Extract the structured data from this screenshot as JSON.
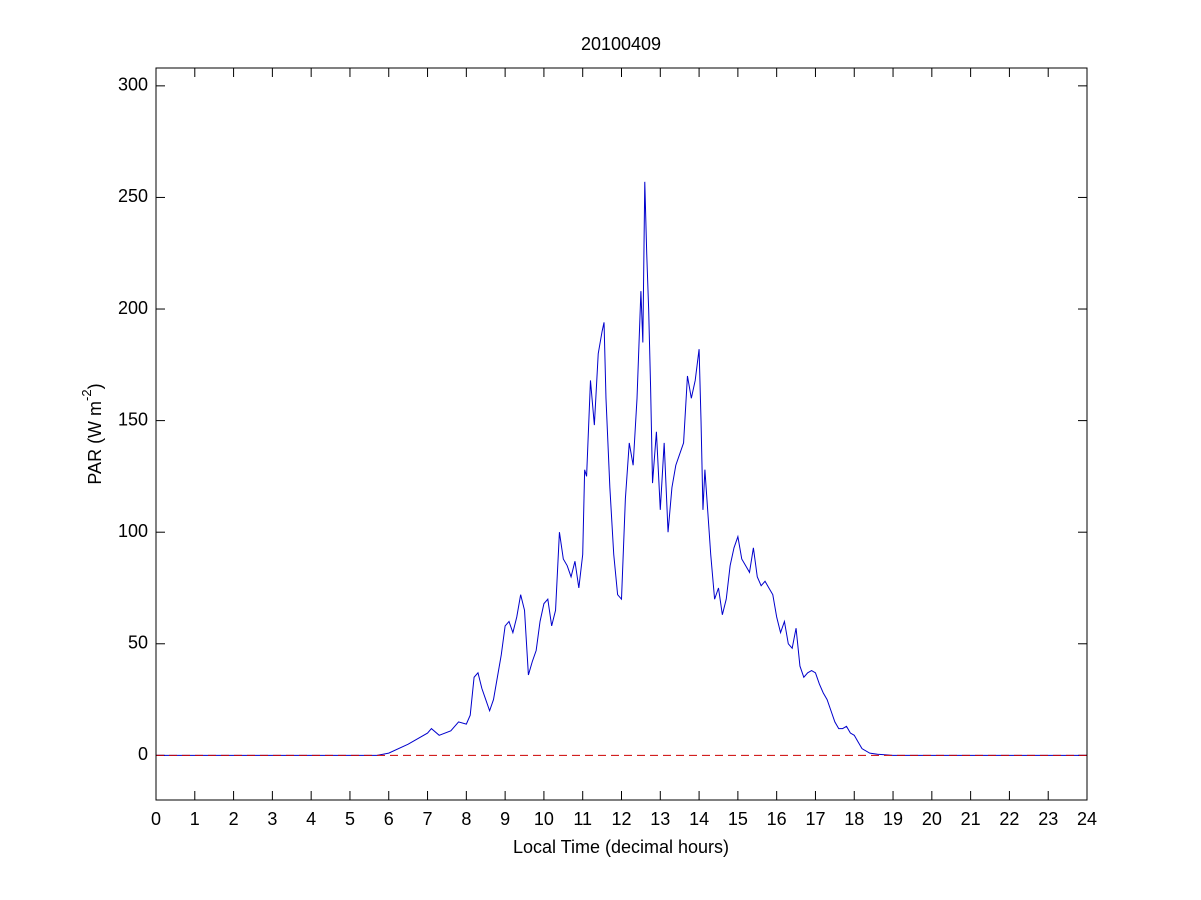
{
  "chart_data": {
    "type": "line",
    "title": "20100409",
    "xlabel": "Local Time (decimal hours)",
    "ylabel": {
      "text": "PAR (W m",
      "superscript": "-2",
      "suffix": ")"
    },
    "xlim": [
      0,
      24
    ],
    "ylim": [
      -20,
      308
    ],
    "xticks": [
      0,
      1,
      2,
      3,
      4,
      5,
      6,
      7,
      8,
      9,
      10,
      11,
      12,
      13,
      14,
      15,
      16,
      17,
      18,
      19,
      20,
      21,
      22,
      23,
      24
    ],
    "yticks": [
      0,
      50,
      100,
      150,
      200,
      250,
      300
    ],
    "grid": false,
    "reference_line": {
      "value": 0,
      "color": "#cc0000",
      "style": "dashed"
    },
    "series": [
      {
        "color": "#0000cc",
        "x": [
          0,
          5.7,
          6,
          6.5,
          7,
          7.1,
          7.3,
          7.6,
          7.8,
          8,
          8.1,
          8.2,
          8.3,
          8.4,
          8.5,
          8.6,
          8.7,
          8.8,
          8.9,
          9,
          9.1,
          9.2,
          9.3,
          9.4,
          9.5,
          9.6,
          9.7,
          9.8,
          9.9,
          10,
          10.1,
          10.2,
          10.3,
          10.4,
          10.5,
          10.6,
          10.7,
          10.8,
          10.9,
          11,
          11.05,
          11.1,
          11.2,
          11.3,
          11.4,
          11.5,
          11.55,
          11.6,
          11.7,
          11.8,
          11.9,
          12,
          12.1,
          12.2,
          12.3,
          12.4,
          12.5,
          12.55,
          12.6,
          12.65,
          12.7,
          12.75,
          12.8,
          12.9,
          13,
          13.1,
          13.2,
          13.3,
          13.4,
          13.5,
          13.6,
          13.7,
          13.8,
          13.9,
          14,
          14.05,
          14.1,
          14.15,
          14.3,
          14.4,
          14.5,
          14.6,
          14.7,
          14.8,
          14.9,
          15,
          15.1,
          15.2,
          15.3,
          15.4,
          15.5,
          15.6,
          15.7,
          15.8,
          15.9,
          16,
          16.1,
          16.2,
          16.3,
          16.4,
          16.5,
          16.6,
          16.7,
          16.8,
          16.9,
          17,
          17.1,
          17.2,
          17.3,
          17.4,
          17.5,
          17.6,
          17.7,
          17.8,
          17.9,
          18,
          18.1,
          18.2,
          18.4,
          18.6,
          19,
          24
        ],
        "values": [
          0,
          0,
          1,
          5,
          10,
          12,
          9,
          11,
          15,
          14,
          18,
          35,
          37,
          30,
          25,
          20,
          25,
          35,
          45,
          58,
          60,
          55,
          62,
          72,
          65,
          36,
          42,
          47,
          60,
          68,
          70,
          58,
          65,
          100,
          88,
          85,
          80,
          87,
          75,
          90,
          128,
          125,
          168,
          148,
          180,
          190,
          194,
          160,
          120,
          90,
          72,
          70,
          115,
          140,
          130,
          160,
          208,
          185,
          257,
          225,
          200,
          165,
          122,
          145,
          110,
          140,
          100,
          120,
          130,
          135,
          140,
          170,
          160,
          168,
          182,
          150,
          110,
          128,
          90,
          70,
          75,
          63,
          70,
          85,
          93,
          98,
          88,
          85,
          82,
          93,
          80,
          76,
          78,
          75,
          72,
          62,
          55,
          60,
          50,
          48,
          57,
          40,
          35,
          37,
          38,
          37,
          32,
          28,
          25,
          20,
          15,
          12,
          12,
          13,
          10,
          9,
          6,
          3,
          1,
          0.5,
          0,
          0
        ]
      }
    ]
  }
}
